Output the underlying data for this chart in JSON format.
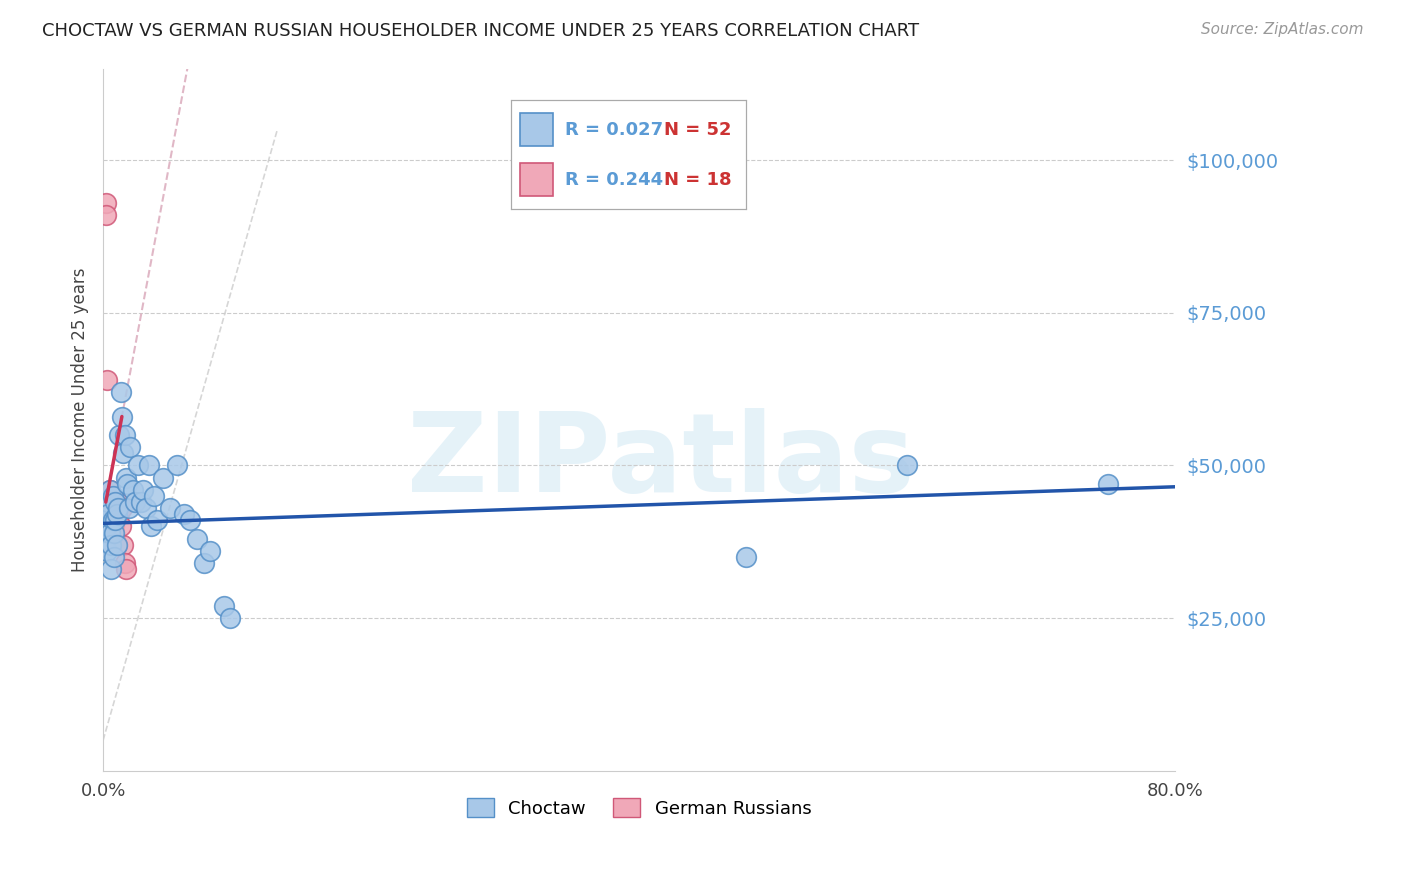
{
  "title": "CHOCTAW VS GERMAN RUSSIAN HOUSEHOLDER INCOME UNDER 25 YEARS CORRELATION CHART",
  "source": "Source: ZipAtlas.com",
  "ylabel": "Householder Income Under 25 years",
  "ytick_labels": [
    "$25,000",
    "$50,000",
    "$75,000",
    "$100,000"
  ],
  "ytick_values": [
    25000,
    50000,
    75000,
    100000
  ],
  "ylim": [
    0,
    115000
  ],
  "xlim": [
    0.0,
    0.8
  ],
  "xtick_values": [
    0.0,
    0.1,
    0.2,
    0.3,
    0.4,
    0.5,
    0.6,
    0.7,
    0.8
  ],
  "xtick_labels": [
    "0.0%",
    "",
    "",
    "",
    "",
    "",
    "",
    "",
    "80.0%"
  ],
  "choctaw_color": "#a8c8e8",
  "german_color": "#f0a8b8",
  "choctaw_edge": "#5590c8",
  "german_edge": "#d05878",
  "trend_choctaw_color": "#2255aa",
  "trend_german_color": "#cc3355",
  "R_choctaw": 0.027,
  "N_choctaw": 52,
  "R_german": 0.244,
  "N_german": 18,
  "watermark": "ZIPatlas",
  "background_color": "#ffffff",
  "choctaw_x": [
    0.002,
    0.002,
    0.003,
    0.003,
    0.003,
    0.004,
    0.004,
    0.005,
    0.005,
    0.006,
    0.006,
    0.007,
    0.007,
    0.008,
    0.008,
    0.009,
    0.009,
    0.01,
    0.01,
    0.011,
    0.012,
    0.013,
    0.014,
    0.015,
    0.016,
    0.017,
    0.018,
    0.019,
    0.02,
    0.022,
    0.024,
    0.026,
    0.028,
    0.03,
    0.032,
    0.034,
    0.036,
    0.038,
    0.04,
    0.045,
    0.05,
    0.055,
    0.06,
    0.065,
    0.07,
    0.075,
    0.08,
    0.09,
    0.095,
    0.48,
    0.6,
    0.75
  ],
  "choctaw_y": [
    41000,
    38000,
    43000,
    40000,
    36000,
    44000,
    42000,
    39000,
    46000,
    37000,
    33000,
    45000,
    41000,
    39000,
    35000,
    44000,
    41000,
    42000,
    37000,
    43000,
    55000,
    62000,
    58000,
    52000,
    55000,
    48000,
    47000,
    43000,
    53000,
    46000,
    44000,
    50000,
    44000,
    46000,
    43000,
    50000,
    40000,
    45000,
    41000,
    48000,
    43000,
    50000,
    42000,
    41000,
    38000,
    34000,
    36000,
    27000,
    25000,
    35000,
    50000,
    47000
  ],
  "german_x": [
    0.002,
    0.002,
    0.003,
    0.004,
    0.005,
    0.005,
    0.006,
    0.007,
    0.008,
    0.009,
    0.01,
    0.011,
    0.012,
    0.013,
    0.014,
    0.015,
    0.016,
    0.017
  ],
  "german_y": [
    93000,
    91000,
    64000,
    43000,
    46000,
    43000,
    44000,
    41000,
    40000,
    38000,
    37000,
    44000,
    42000,
    40000,
    43000,
    37000,
    34000,
    33000
  ]
}
